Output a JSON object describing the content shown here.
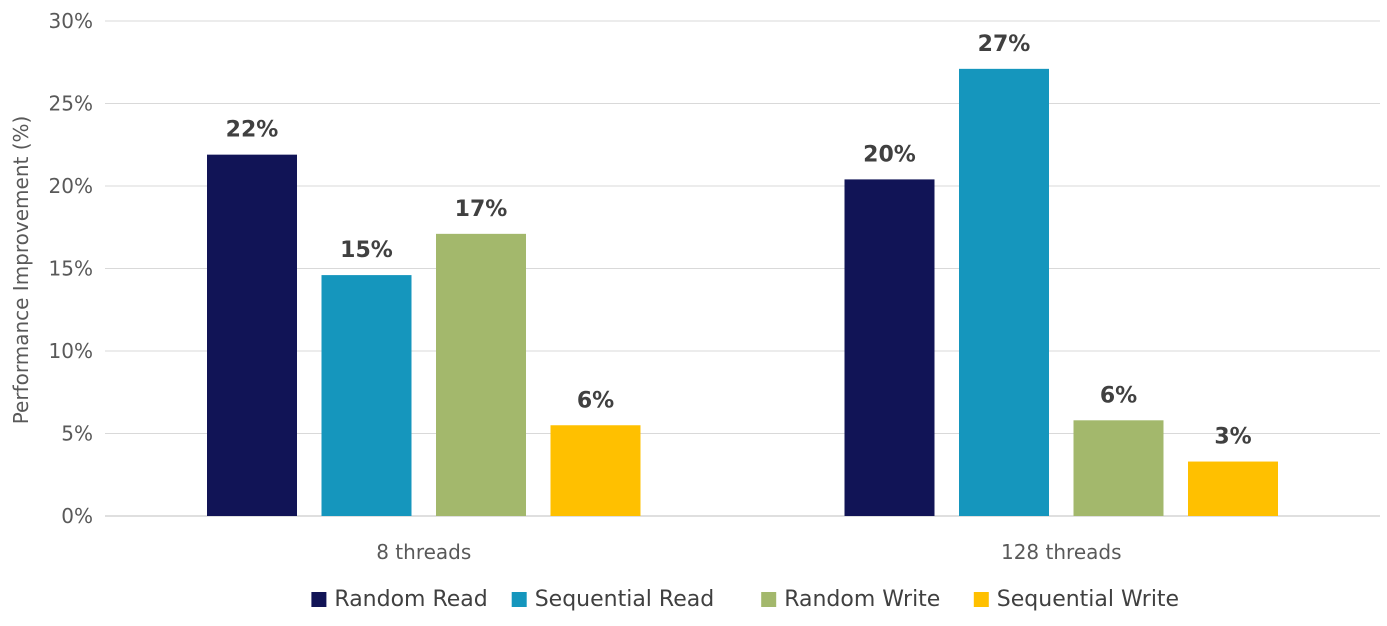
{
  "chart_data": {
    "type": "bar",
    "title": "",
    "xlabel": "",
    "ylabel": "Performance Improvement (%)",
    "ylim": [
      0,
      30
    ],
    "yticks": [
      0,
      5,
      10,
      15,
      20,
      25,
      30
    ],
    "ytick_suffix": "%",
    "categories": [
      "8 threads",
      "128 threads"
    ],
    "series": [
      {
        "name": "Random Read",
        "color": "#111456",
        "values": [
          21.9,
          20.4
        ],
        "labels": [
          "22%",
          "20%"
        ]
      },
      {
        "name": "Sequential Read",
        "color": "#1596BD",
        "values": [
          14.6,
          27.1
        ],
        "labels": [
          "15%",
          "27%"
        ]
      },
      {
        "name": "Random Write",
        "color": "#A3B86C",
        "values": [
          17.1,
          5.8
        ],
        "labels": [
          "17%",
          "6%"
        ]
      },
      {
        "name": "Sequential Write",
        "color": "#FFC000",
        "values": [
          5.5,
          3.3
        ],
        "labels": [
          "6%",
          "3%"
        ]
      }
    ],
    "grid": true,
    "legend_position": "bottom"
  }
}
